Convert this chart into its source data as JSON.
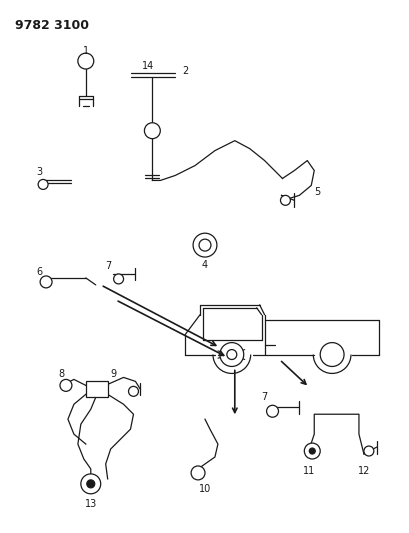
{
  "title": "9782 3100",
  "bg_color": "#ffffff",
  "line_color": "#1a1a1a",
  "fig_width": 4.1,
  "fig_height": 5.33,
  "dpi": 100
}
